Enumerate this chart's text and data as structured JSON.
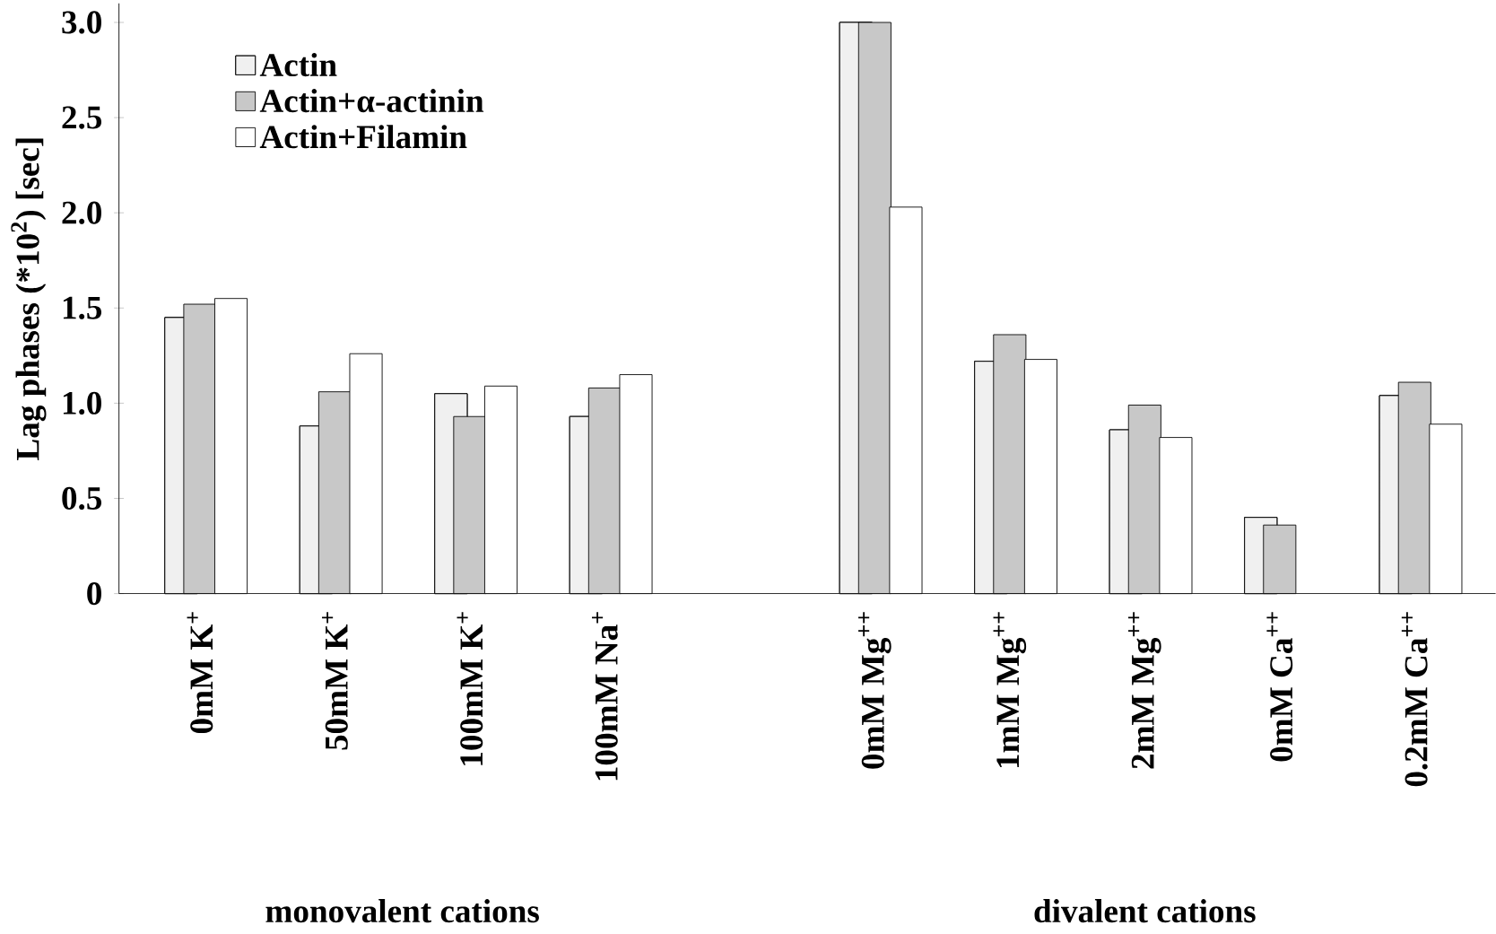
{
  "chart_data": {
    "type": "bar",
    "ylabel": "Lag phases (*10$^{2}$) [sec]",
    "categories": [
      "0mM K$^{+}$",
      "50mM K$^{+}$",
      "100mM K$^{+}$",
      "100mM Na$^{+}$",
      null,
      "0mM Mg$^{++}$",
      "1mM Mg$^{++}$",
      "2mM Mg$^{++}$",
      "0mM Ca$^{++}$",
      "0.2mM Ca$^{++}$"
    ],
    "series": [
      {
        "name": "Actin",
        "color": "#f0f0f0",
        "values": [
          1.45,
          0.88,
          1.05,
          0.93,
          null,
          3.0,
          1.22,
          0.86,
          0.4,
          1.04
        ]
      },
      {
        "name": "Actin+α-actinin",
        "color": "#c8c8c8",
        "values": [
          1.52,
          1.06,
          0.93,
          1.08,
          null,
          3.0,
          1.36,
          0.99,
          0.36,
          1.11
        ]
      },
      {
        "name": "Actin+Filamin",
        "color": "#ffffff",
        "values": [
          1.55,
          1.26,
          1.09,
          1.15,
          null,
          2.03,
          1.23,
          0.82,
          null,
          0.89
        ]
      }
    ],
    "ylim": [
      0,
      3.1
    ],
    "yticks": [
      0,
      {
        "value": 0.5,
        "label": "0.5"
      },
      {
        "value": 1,
        "label": "1.0"
      },
      {
        "value": 1.5,
        "label": "1.5"
      },
      {
        "value": 2,
        "label": "2.0"
      },
      {
        "value": 2.5,
        "label": "2.5"
      },
      {
        "value": 3,
        "label": "3.0"
      }
    ],
    "legend": "top left",
    "annotations": [
      "monovalent cations",
      "divalent cations"
    ]
  }
}
